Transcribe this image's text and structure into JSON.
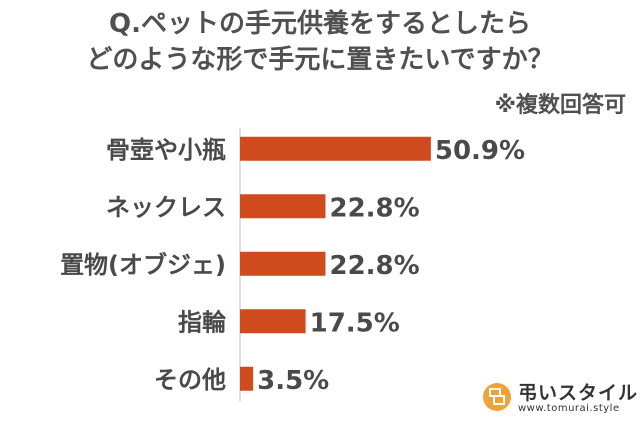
{
  "title_line1": "Q.ペットの手元供養をするとしたら",
  "title_line2": "どのような形で手元に置きたいですか？",
  "note": "※複数回答可",
  "colors": {
    "bar": "#cf4a1c",
    "axis": "#bfbfbf",
    "logo_orange": "#f0a23a"
  },
  "logo": {
    "name": "弔いスタイル",
    "url": "www.tomurai.style",
    "icon": "tomurai-style-logo-icon"
  },
  "chart_data": {
    "type": "bar",
    "orientation": "horizontal",
    "categories": [
      "骨壺や小瓶",
      "ネックレス",
      "置物(オブジェ)",
      "指輪",
      "その他"
    ],
    "values": [
      50.9,
      22.8,
      22.8,
      17.5,
      3.5
    ],
    "value_labels": [
      "50.9%",
      "22.8%",
      "22.8%",
      "17.5%",
      "3.5%"
    ],
    "unit": "%",
    "xlim": [
      0,
      100
    ],
    "grid": false,
    "legend": "none"
  }
}
